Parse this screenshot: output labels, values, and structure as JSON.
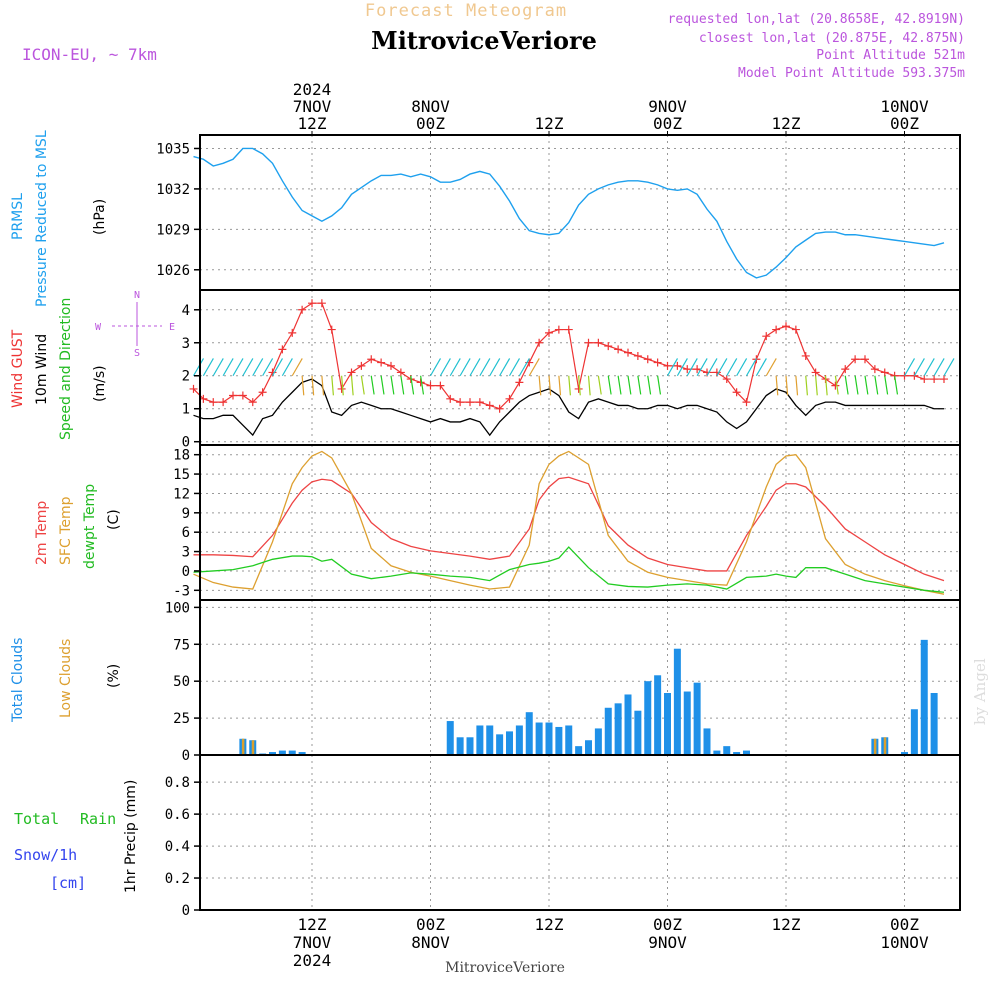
{
  "header": {
    "subtitle": "Forecast Meteogram",
    "title": "MitroviceVeriore",
    "model": "ICON-EU, ~ 7km",
    "requested": "requested lon,lat (20.8658E, 42.8919N)",
    "closest": "closest lon,lat (20.875E, 42.875N)",
    "point_altitude": "Point Altitude 521m",
    "model_altitude": "Model Point Altitude 593.375m",
    "watermark": "by Angel",
    "footer_place": "MitroviceVeriore"
  },
  "time_axis": {
    "top_labels": [
      {
        "hour": 12,
        "lines": [
          "2024",
          "7NOV",
          "12Z"
        ]
      },
      {
        "hour": 24,
        "lines": [
          "8NOV",
          "00Z"
        ]
      },
      {
        "hour": 36,
        "lines": [
          "12Z"
        ]
      },
      {
        "hour": 48,
        "lines": [
          "9NOV",
          "00Z"
        ]
      },
      {
        "hour": 60,
        "lines": [
          "12Z"
        ]
      },
      {
        "hour": 72,
        "lines": [
          "10NOV",
          "00Z"
        ]
      }
    ],
    "bottom_labels": [
      {
        "hour": 12,
        "lines": [
          "12Z",
          "7NOV",
          "2024"
        ]
      },
      {
        "hour": 24,
        "lines": [
          "00Z",
          "8NOV"
        ]
      },
      {
        "hour": 36,
        "lines": [
          "12Z"
        ]
      },
      {
        "hour": 48,
        "lines": [
          "00Z",
          "9NOV"
        ]
      },
      {
        "hour": 60,
        "lines": [
          "12Z"
        ]
      },
      {
        "hour": 72,
        "lines": [
          "00Z",
          "10NOV"
        ]
      }
    ]
  },
  "panels": {
    "pressure": {
      "label_1": "PRMSL",
      "label_2": "Pressure Reduced to MSL",
      "unit": "(hPa)",
      "ticks": [
        "1026",
        "1029",
        "1032",
        "1035"
      ]
    },
    "wind": {
      "label_1": "Wind GUST",
      "label_2": "10m Wind",
      "label_3": "Speed and Direction",
      "unit": "(m/s)",
      "ticks": [
        "0",
        "1",
        "2",
        "3",
        "4"
      ],
      "compass_n": "N",
      "compass_s": "S",
      "compass_w": "W",
      "compass_e": "E"
    },
    "temperature": {
      "label_1": "2m Temp",
      "label_2": "SFC Temp",
      "label_3": "dewpt Temp",
      "unit": "(C)",
      "ticks": [
        "-3",
        "0",
        "3",
        "6",
        "9",
        "12",
        "15",
        "18"
      ]
    },
    "clouds": {
      "label_1": "Total Clouds",
      "label_2": "Low Clouds",
      "unit": "(%)",
      "ticks": [
        "0",
        "25",
        "50",
        "75",
        "100"
      ]
    },
    "precip": {
      "label_total": "Total",
      "label_rain": "Rain",
      "label_snow": "Snow/1h",
      "label_cm": "[cm]",
      "unit": "1hr Precip (mm)",
      "ticks": [
        "0",
        "0.2",
        "0.4",
        "0.6",
        "0.8"
      ]
    }
  },
  "colors": {
    "pressure": "#1ea0ee",
    "gust": "#ee3333",
    "wind": "#000000",
    "temp2m": "#ee4444",
    "sfc": "#dda030",
    "dewpt": "#22cc22",
    "total_clouds": "#1e90e8",
    "low_clouds": "#d9a030",
    "grid": "#999999",
    "label_purple": "#bb55dd",
    "snow": "#3344ee",
    "subtitle": "#f0c890"
  },
  "chart_data": [
    {
      "type": "line",
      "title": "PRMSL Pressure Reduced to MSL",
      "ylabel": "(hPa)",
      "ylim": [
        1024.5,
        1036
      ],
      "x_hours": [
        0,
        1,
        2,
        3,
        4,
        5,
        6,
        7,
        8,
        9,
        10,
        11,
        12,
        13,
        14,
        15,
        16,
        17,
        18,
        19,
        20,
        21,
        22,
        23,
        24,
        25,
        26,
        27,
        28,
        29,
        30,
        31,
        32,
        33,
        34,
        35,
        36,
        37,
        38,
        39,
        40,
        41,
        42,
        43,
        44,
        45,
        46,
        47,
        48,
        49,
        50,
        51,
        52,
        53,
        54,
        55,
        56,
        57,
        58,
        59,
        60,
        61,
        62,
        63,
        64,
        65,
        66,
        67,
        68,
        69,
        70,
        71,
        72,
        73,
        74,
        75,
        76
      ],
      "values": [
        1034.4,
        1034.2,
        1033.7,
        1033.9,
        1034.2,
        1035.0,
        1035.0,
        1034.6,
        1033.9,
        1032.6,
        1031.4,
        1030.4,
        1030.0,
        1029.6,
        1030.0,
        1030.6,
        1031.6,
        1032.1,
        1032.6,
        1033.0,
        1033.0,
        1033.1,
        1032.9,
        1033.1,
        1032.9,
        1032.5,
        1032.5,
        1032.7,
        1033.1,
        1033.3,
        1033.1,
        1032.2,
        1031.1,
        1029.8,
        1028.9,
        1028.7,
        1028.6,
        1028.7,
        1029.5,
        1030.8,
        1031.6,
        1032.0,
        1032.3,
        1032.5,
        1032.6,
        1032.6,
        1032.5,
        1032.3,
        1032.0,
        1031.9,
        1032.0,
        1031.6,
        1030.5,
        1029.6,
        1028.1,
        1026.8,
        1025.8,
        1025.4,
        1025.6,
        1026.2,
        1026.9,
        1027.7,
        1028.2,
        1028.7,
        1028.8,
        1028.8,
        1028.6,
        1028.6,
        1028.5,
        1028.4,
        1028.3,
        1028.2,
        1028.1,
        1028.0,
        1027.9,
        1027.8,
        1028.0
      ]
    },
    {
      "type": "line",
      "title": "Wind GUST / 10m Wind Speed",
      "ylabel": "(m/s)",
      "ylim": [
        -0.1,
        4.6
      ],
      "x_hours": [
        0,
        1,
        2,
        3,
        4,
        5,
        6,
        7,
        8,
        9,
        10,
        11,
        12,
        13,
        14,
        15,
        16,
        17,
        18,
        19,
        20,
        21,
        22,
        23,
        24,
        25,
        26,
        27,
        28,
        29,
        30,
        31,
        32,
        33,
        34,
        35,
        36,
        37,
        38,
        39,
        40,
        41,
        42,
        43,
        44,
        45,
        46,
        47,
        48,
        49,
        50,
        51,
        52,
        53,
        54,
        55,
        56,
        57,
        58,
        59,
        60,
        61,
        62,
        63,
        64,
        65,
        66,
        67,
        68,
        69,
        70,
        71,
        72,
        73,
        74,
        75,
        76
      ],
      "series": [
        {
          "name": "Wind GUST",
          "values": [
            1.6,
            1.3,
            1.2,
            1.2,
            1.4,
            1.4,
            1.2,
            1.5,
            2.1,
            2.8,
            3.3,
            4.0,
            4.2,
            4.2,
            3.4,
            1.6,
            2.1,
            2.3,
            2.5,
            2.4,
            2.3,
            2.1,
            1.9,
            1.8,
            1.7,
            1.7,
            1.3,
            1.2,
            1.2,
            1.2,
            1.1,
            1.0,
            1.3,
            1.8,
            2.4,
            3.0,
            3.3,
            3.4,
            3.4,
            1.6,
            3.0,
            3.0,
            2.9,
            2.8,
            2.7,
            2.6,
            2.5,
            2.4,
            2.3,
            2.3,
            2.2,
            2.2,
            2.1,
            2.1,
            1.9,
            1.5,
            1.2,
            2.5,
            3.2,
            3.4,
            3.5,
            3.4,
            2.6,
            2.1,
            1.9,
            1.7,
            2.2,
            2.5,
            2.5,
            2.2,
            2.1,
            2.0,
            2.0,
            2.0,
            1.9,
            1.9,
            1.9
          ]
        },
        {
          "name": "10m Wind",
          "values": [
            0.8,
            0.7,
            0.7,
            0.8,
            0.8,
            0.5,
            0.2,
            0.7,
            0.8,
            1.2,
            1.5,
            1.8,
            1.9,
            1.7,
            0.9,
            0.8,
            1.1,
            1.2,
            1.1,
            1.0,
            1.0,
            0.9,
            0.8,
            0.7,
            0.6,
            0.7,
            0.6,
            0.6,
            0.7,
            0.6,
            0.2,
            0.6,
            0.9,
            1.2,
            1.4,
            1.5,
            1.6,
            1.4,
            0.9,
            0.7,
            1.2,
            1.3,
            1.2,
            1.1,
            1.1,
            1.0,
            1.0,
            1.1,
            1.1,
            1.0,
            1.1,
            1.1,
            1.0,
            0.9,
            0.6,
            0.4,
            0.6,
            1.0,
            1.4,
            1.6,
            1.5,
            1.1,
            0.8,
            1.1,
            1.2,
            1.2,
            1.1,
            1.1,
            1.1,
            1.1,
            1.1,
            1.1,
            1.1,
            1.1,
            1.1,
            1.0,
            1.0
          ]
        }
      ]
    },
    {
      "type": "line",
      "title": "2m Temp / SFC Temp / dewpt Temp",
      "ylabel": "(C)",
      "ylim": [
        -4.5,
        19.5
      ],
      "x_hours": [
        0,
        2,
        4,
        6,
        8,
        10,
        11,
        12,
        13,
        14,
        16,
        18,
        20,
        22,
        24,
        26,
        28,
        30,
        32,
        34,
        35,
        36,
        37,
        38,
        40,
        42,
        44,
        46,
        48,
        50,
        52,
        54,
        56,
        58,
        59,
        60,
        61,
        62,
        64,
        66,
        68,
        70,
        72,
        74,
        76
      ],
      "series": [
        {
          "name": "2m Temp",
          "values": [
            2.5,
            2.5,
            2.4,
            2.2,
            5.5,
            10.5,
            12.5,
            13.8,
            14.2,
            14.0,
            12.0,
            7.5,
            5.0,
            3.8,
            3.1,
            2.7,
            2.3,
            1.8,
            2.3,
            6.5,
            11.0,
            13.0,
            14.3,
            14.5,
            13.5,
            7.0,
            4.0,
            2.0,
            1.0,
            0.5,
            0.0,
            0.0,
            5.5,
            10.0,
            12.5,
            13.5,
            13.5,
            13.0,
            10.0,
            6.5,
            4.5,
            2.5,
            1.0,
            -0.5,
            -1.5
          ]
        },
        {
          "name": "SFC Temp",
          "values": [
            -0.5,
            -1.8,
            -2.5,
            -2.8,
            4.5,
            13.5,
            16.0,
            17.8,
            18.5,
            17.5,
            12.0,
            3.5,
            0.8,
            -0.2,
            -0.8,
            -1.5,
            -2.2,
            -2.8,
            -2.5,
            4.0,
            13.5,
            16.5,
            17.8,
            18.5,
            16.5,
            5.5,
            1.5,
            -0.2,
            -1.0,
            -1.5,
            -2.0,
            -2.2,
            4.5,
            13.0,
            16.5,
            17.8,
            18.0,
            16.0,
            5.0,
            1.0,
            -0.5,
            -1.5,
            -2.3,
            -3.0,
            -3.6
          ]
        },
        {
          "name": "dewpt Temp",
          "values": [
            -0.2,
            0.0,
            0.2,
            0.8,
            1.8,
            2.3,
            2.3,
            2.2,
            1.5,
            1.8,
            -0.5,
            -1.2,
            -0.8,
            -0.3,
            -0.5,
            -0.8,
            -1.0,
            -1.5,
            0.2,
            1.0,
            1.2,
            1.5,
            2.0,
            3.7,
            0.5,
            -2.0,
            -2.4,
            -2.5,
            -2.2,
            -2.0,
            -2.2,
            -2.8,
            -1.0,
            -0.8,
            -0.5,
            -0.8,
            -1.0,
            0.5,
            0.5,
            -0.5,
            -1.5,
            -2.0,
            -2.5,
            -3.0,
            -3.3
          ]
        }
      ]
    },
    {
      "type": "bar",
      "title": "Total Clouds / Low Clouds",
      "ylabel": "(%)",
      "ylim": [
        0,
        105
      ],
      "x_hours": [
        0,
        1,
        2,
        3,
        4,
        5,
        6,
        7,
        8,
        9,
        10,
        11,
        12,
        13,
        14,
        15,
        16,
        17,
        18,
        19,
        20,
        21,
        22,
        23,
        24,
        25,
        26,
        27,
        28,
        29,
        30,
        31,
        32,
        33,
        34,
        35,
        36,
        37,
        38,
        39,
        40,
        41,
        42,
        43,
        44,
        45,
        46,
        47,
        48,
        49,
        50,
        51,
        52,
        53,
        54,
        55,
        56,
        57,
        58,
        59,
        60,
        61,
        62,
        63,
        64,
        65,
        66,
        67,
        68,
        69,
        70,
        71,
        72,
        73,
        74,
        75
      ],
      "series": [
        {
          "name": "Total Clouds",
          "values": [
            0,
            0,
            0,
            0,
            0,
            11,
            10,
            1,
            2,
            3,
            3,
            2,
            0,
            0,
            0,
            0,
            0,
            0,
            0,
            0,
            0,
            0,
            0,
            0,
            0,
            0,
            23,
            12,
            12,
            20,
            20,
            14,
            16,
            20,
            29,
            22,
            22,
            19,
            20,
            6,
            10,
            18,
            32,
            35,
            41,
            30,
            50,
            54,
            42,
            72,
            43,
            49,
            18,
            3,
            6,
            2,
            3,
            0,
            0,
            0,
            0,
            0,
            0,
            0,
            0,
            0,
            0,
            0,
            0,
            11,
            12,
            0,
            2,
            31,
            78,
            42
          ]
        },
        {
          "name": "Low Clouds",
          "values": [
            0,
            0,
            0,
            0,
            0,
            11,
            10,
            0,
            0,
            0,
            0,
            0,
            0,
            0,
            0,
            0,
            0,
            0,
            0,
            0,
            0,
            0,
            0,
            0,
            0,
            0,
            0,
            0,
            0,
            0,
            0,
            0,
            0,
            0,
            0,
            0,
            0,
            0,
            0,
            0,
            0,
            0,
            0,
            0,
            0,
            0,
            0,
            0,
            0,
            0,
            0,
            0,
            0,
            0,
            0,
            0,
            0,
            0,
            0,
            0,
            0,
            0,
            0,
            0,
            0,
            0,
            0,
            0,
            0,
            11,
            12,
            0,
            0,
            0,
            0,
            0
          ]
        }
      ]
    },
    {
      "type": "bar",
      "title": "1hr Precip (mm)",
      "ylabel": "1hr Precip (mm)",
      "ylim": [
        0,
        0.97
      ],
      "series": [
        {
          "name": "Total Rain",
          "values": []
        },
        {
          "name": "Snow/1h",
          "values": []
        }
      ]
    }
  ]
}
